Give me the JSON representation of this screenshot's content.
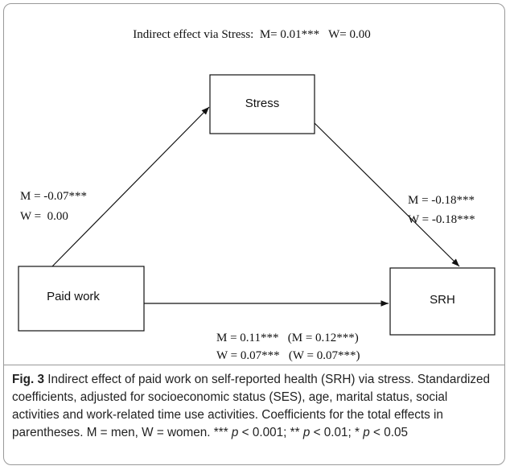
{
  "heading": "Indirect effect via Stress:  M= 0.01***   W= 0.00",
  "nodes": [
    {
      "label": "Stress"
    },
    {
      "label": "Paid work"
    },
    {
      "label": "SRH"
    }
  ],
  "edges": [
    {
      "labels": [
        "M = -0.07***",
        "W =  0.00"
      ]
    },
    {
      "labels": [
        "M = -0.18***",
        "W = -0.18***"
      ]
    },
    {
      "labels": [
        "M = 0.11***   (M = 0.12***)",
        "W = 0.07***   (W = 0.07***)"
      ]
    }
  ],
  "caption": {
    "label": "Fig. 3",
    "segments": [
      {
        "text": " Indirect effect of paid work on self-reported health (SRH) via stress. Standardized coefficients, adjusted for socioeconomic status (SES), age, marital status, social activities and work-related time use activities. Coefficients for the total effects in parentheses. M = men, W = women. *** ",
        "italic": false
      },
      {
        "text": "p",
        "italic": true
      },
      {
        "text": " < 0.001; ** ",
        "italic": false
      },
      {
        "text": "p",
        "italic": true
      },
      {
        "text": " < 0.01; * ",
        "italic": false
      },
      {
        "text": "p",
        "italic": true
      },
      {
        "text": " < 0.05",
        "italic": false
      }
    ]
  }
}
